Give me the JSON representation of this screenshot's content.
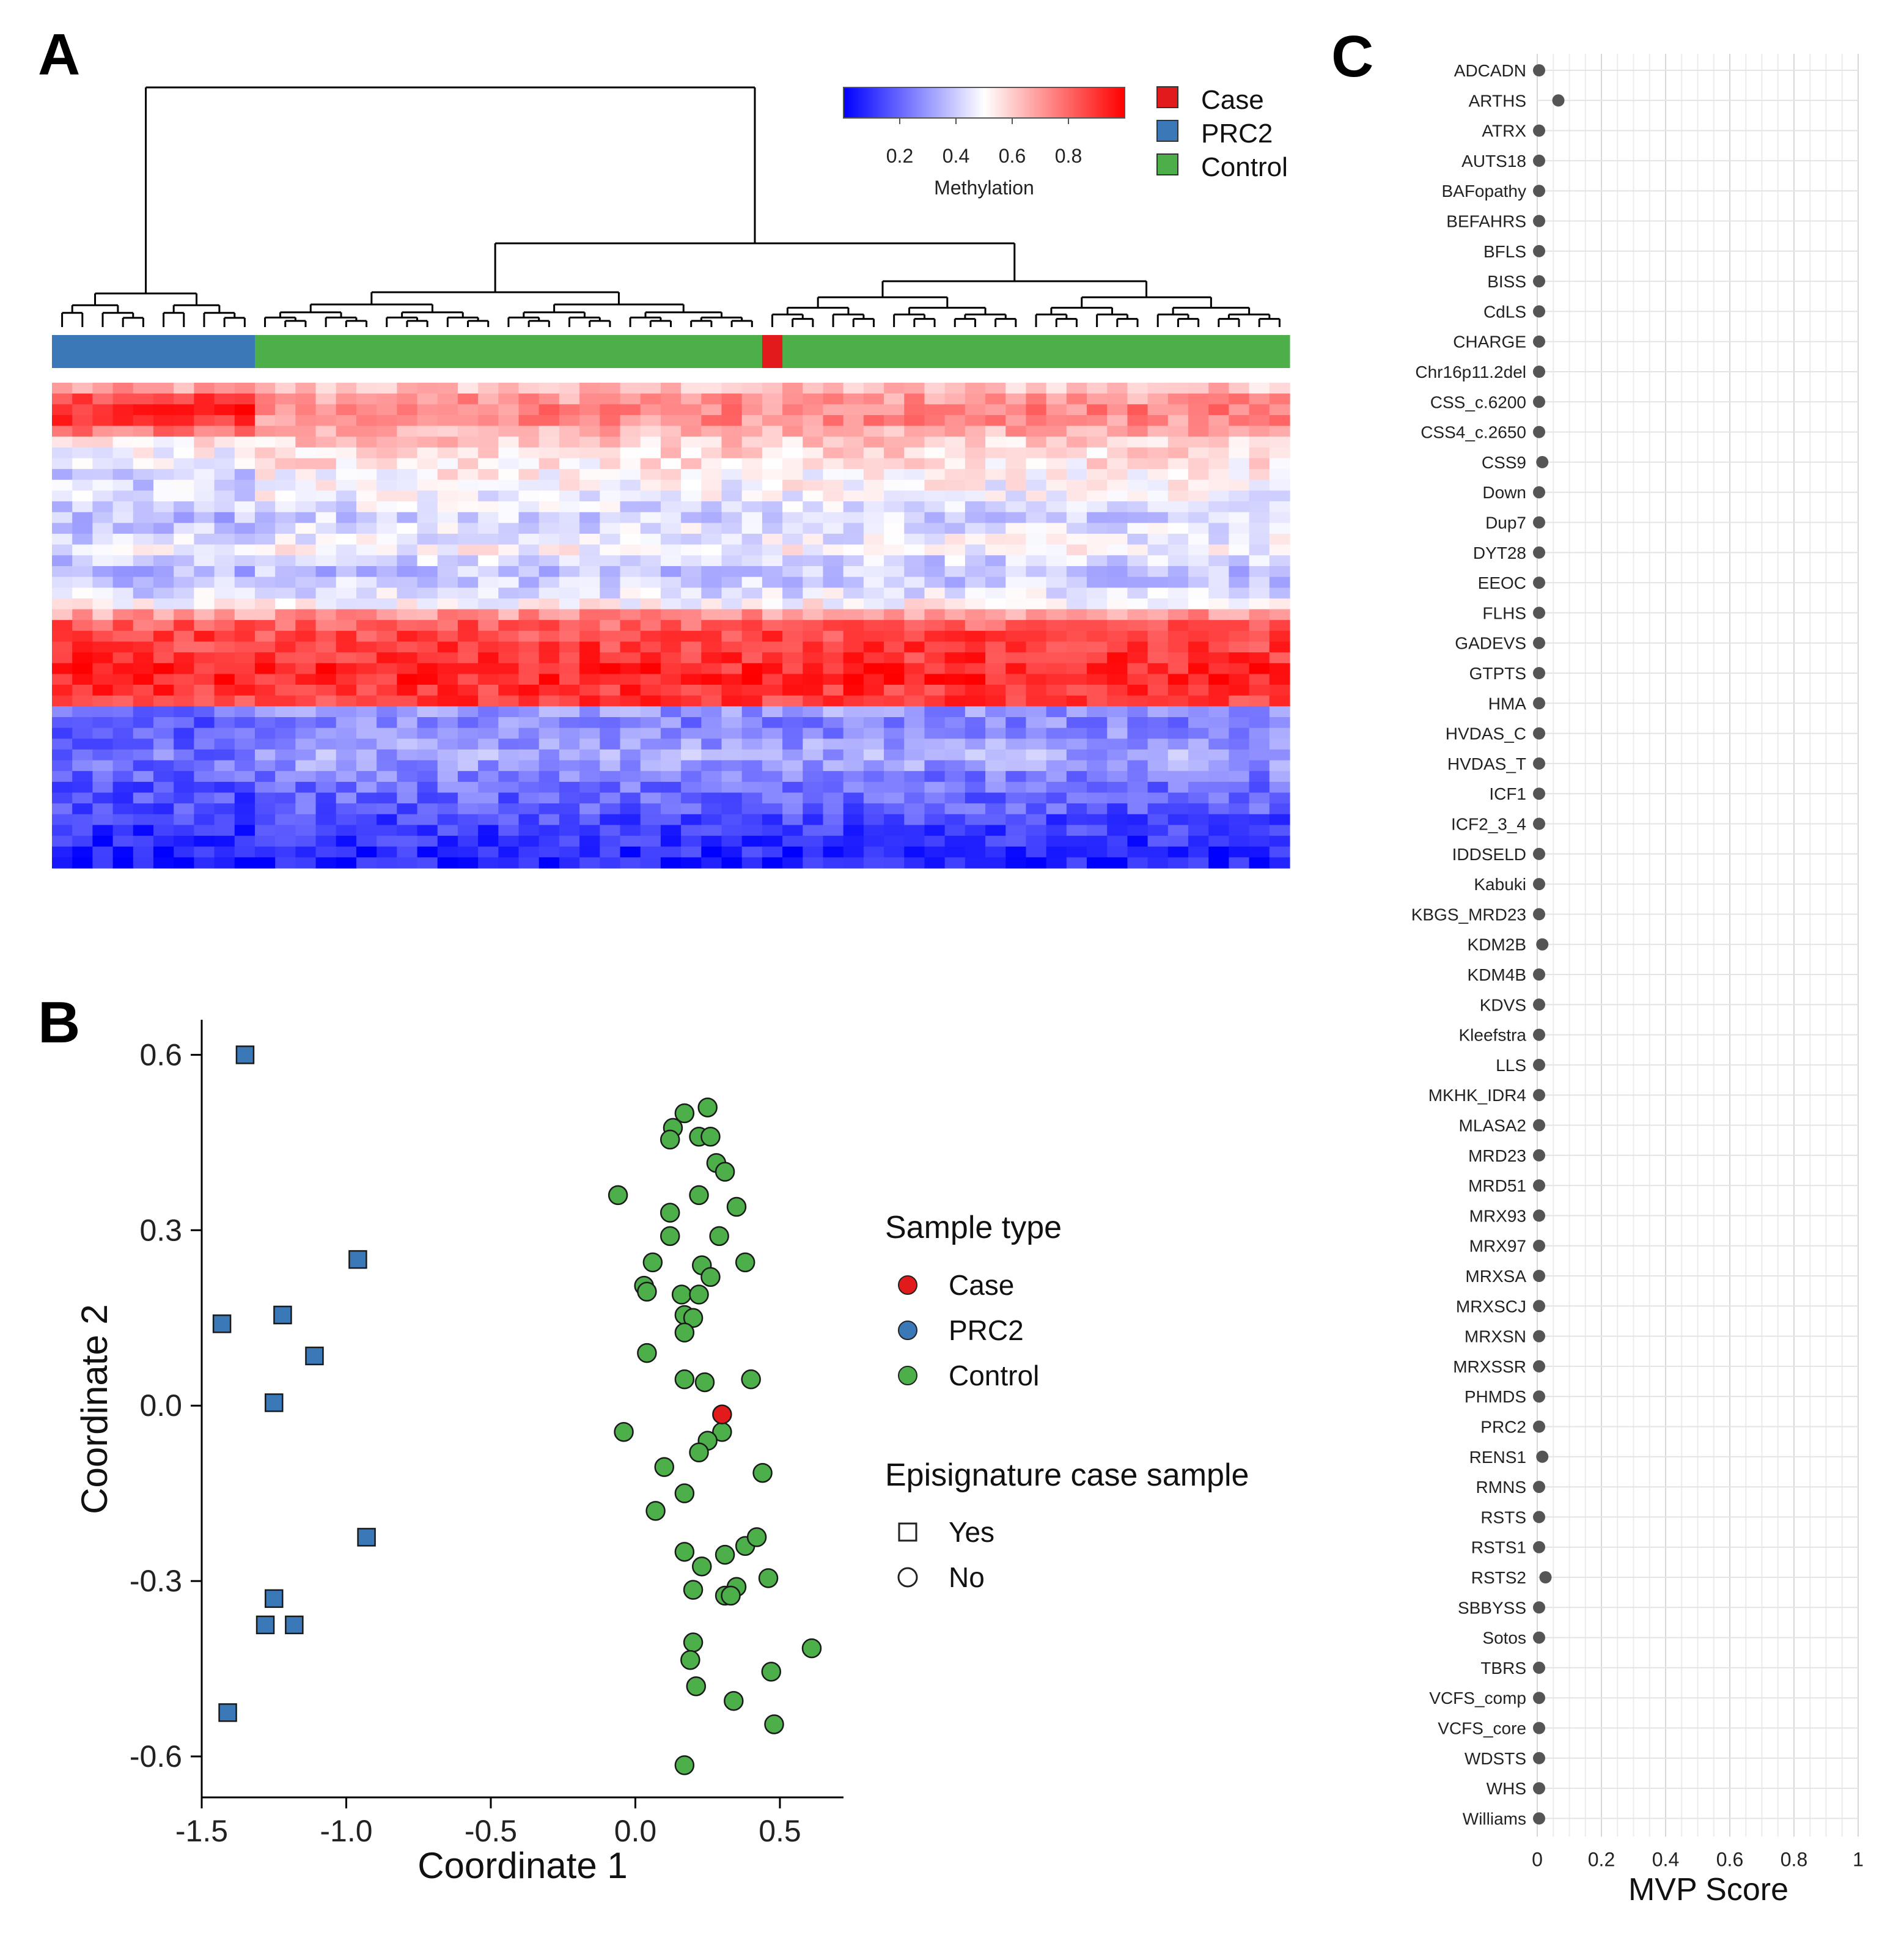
{
  "panels": {
    "a": "A",
    "b": "B",
    "c": "C"
  },
  "colors": {
    "case": "#e31a1c",
    "prc2": "#3a78b8",
    "control": "#4daf4a",
    "heat_low": "#0000ff",
    "heat_mid": "#ffffff",
    "heat_high": "#ff0000",
    "mvp_dot": "#555555"
  },
  "chart_data": [
    {
      "type": "heatmap",
      "panel": "A",
      "title": "",
      "colorbar": {
        "label": "Methylation",
        "ticks": [
          "0.2",
          "0.4",
          "0.6",
          "0.8"
        ],
        "range": [
          0,
          1
        ]
      },
      "legend": [
        {
          "label": "Case",
          "color": "#e31a1c"
        },
        {
          "label": "PRC2",
          "color": "#3a78b8"
        },
        {
          "label": "Control",
          "color": "#4daf4a"
        }
      ],
      "sample_groups": [
        {
          "group": "PRC2",
          "count": 10
        },
        {
          "group": "Control",
          "count": 25
        },
        {
          "group": "Case",
          "count": 1
        },
        {
          "group": "Control",
          "count": 25
        }
      ],
      "row_profile": [
        0.62,
        0.7,
        0.74,
        0.72,
        0.66,
        0.6,
        0.58,
        0.55,
        0.52,
        0.5,
        0.48,
        0.45,
        0.42,
        0.44,
        0.47,
        0.5,
        0.42,
        0.38,
        0.4,
        0.45,
        0.52,
        0.7,
        0.82,
        0.86,
        0.88,
        0.9,
        0.92,
        0.93,
        0.9,
        0.88,
        0.3,
        0.26,
        0.28,
        0.3,
        0.33,
        0.3,
        0.25,
        0.22,
        0.2,
        0.18,
        0.14,
        0.12,
        0.1,
        0.08,
        0.06
      ],
      "prc2_row_shift": [
        0.05,
        0.18,
        0.2,
        0.18,
        0.1,
        -0.05,
        -0.08,
        -0.1,
        -0.1,
        -0.08,
        -0.06,
        -0.05,
        -0.05,
        -0.05,
        -0.04,
        -0.03,
        -0.02,
        -0.02,
        -0.02,
        -0.02,
        -0.02,
        -0.02,
        0,
        0,
        0,
        0,
        0,
        0,
        0,
        0,
        -0.08,
        -0.08,
        -0.1,
        -0.1,
        -0.1,
        -0.08,
        -0.05,
        -0.05,
        -0.05,
        -0.04,
        -0.03,
        -0.03,
        -0.02,
        -0.02,
        -0.02
      ]
    },
    {
      "type": "scatter",
      "panel": "B",
      "xlabel": "Coordinate 1",
      "ylabel": "Coordinate 2",
      "xlim": [
        -1.5,
        0.72
      ],
      "ylim": [
        -0.67,
        0.66
      ],
      "xticks": [
        -1.5,
        -1.0,
        -0.5,
        0.0,
        0.5
      ],
      "xtick_labels": [
        "-1.5",
        "-1.0",
        "-0.5",
        "0.0",
        "0.5"
      ],
      "yticks": [
        0.6,
        0.3,
        0.0,
        -0.3,
        -0.6
      ],
      "ytick_labels": [
        "0.6",
        "0.3",
        "0.0",
        "-0.3",
        "-0.6"
      ],
      "legend_sample_type": {
        "title": "Sample type",
        "items": [
          {
            "label": "Case",
            "color": "#e31a1c"
          },
          {
            "label": "PRC2",
            "color": "#3a78b8"
          },
          {
            "label": "Control",
            "color": "#4daf4a"
          }
        ]
      },
      "legend_episignature": {
        "title": "Episignature case sample",
        "items": [
          {
            "label": "Yes",
            "shape": "square"
          },
          {
            "label": "No",
            "shape": "circle"
          }
        ]
      },
      "series": [
        {
          "name": "PRC2",
          "shape": "square",
          "points": [
            [
              -1.35,
              0.6
            ],
            [
              -0.96,
              0.25
            ],
            [
              -1.43,
              0.14
            ],
            [
              -1.22,
              0.155
            ],
            [
              -1.11,
              0.085
            ],
            [
              -1.25,
              0.005
            ],
            [
              -0.93,
              -0.225
            ],
            [
              -1.25,
              -0.33
            ],
            [
              -1.28,
              -0.375
            ],
            [
              -1.18,
              -0.375
            ],
            [
              -1.41,
              -0.525
            ]
          ]
        },
        {
          "name": "Case",
          "shape": "circle",
          "points": [
            [
              0.3,
              -0.015
            ]
          ]
        },
        {
          "name": "Control",
          "shape": "circle",
          "points": [
            [
              0.25,
              0.51
            ],
            [
              0.17,
              0.5
            ],
            [
              0.13,
              0.475
            ],
            [
              0.12,
              0.455
            ],
            [
              0.22,
              0.46
            ],
            [
              0.26,
              0.46
            ],
            [
              0.28,
              0.415
            ],
            [
              0.31,
              0.4
            ],
            [
              -0.06,
              0.36
            ],
            [
              0.22,
              0.36
            ],
            [
              0.35,
              0.34
            ],
            [
              0.12,
              0.33
            ],
            [
              0.12,
              0.29
            ],
            [
              0.29,
              0.29
            ],
            [
              0.06,
              0.245
            ],
            [
              0.23,
              0.24
            ],
            [
              0.38,
              0.245
            ],
            [
              0.26,
              0.22
            ],
            [
              0.03,
              0.205
            ],
            [
              0.04,
              0.195
            ],
            [
              0.16,
              0.19
            ],
            [
              0.22,
              0.19
            ],
            [
              0.17,
              0.155
            ],
            [
              0.2,
              0.15
            ],
            [
              0.17,
              0.125
            ],
            [
              0.04,
              0.09
            ],
            [
              0.17,
              0.045
            ],
            [
              0.24,
              0.04
            ],
            [
              0.4,
              0.045
            ],
            [
              0.3,
              -0.045
            ],
            [
              -0.04,
              -0.045
            ],
            [
              0.25,
              -0.06
            ],
            [
              0.22,
              -0.08
            ],
            [
              0.1,
              -0.105
            ],
            [
              0.44,
              -0.115
            ],
            [
              0.17,
              -0.15
            ],
            [
              0.07,
              -0.18
            ],
            [
              0.17,
              -0.25
            ],
            [
              0.31,
              -0.255
            ],
            [
              0.38,
              -0.24
            ],
            [
              0.42,
              -0.225
            ],
            [
              0.23,
              -0.275
            ],
            [
              0.46,
              -0.295
            ],
            [
              0.35,
              -0.31
            ],
            [
              0.2,
              -0.315
            ],
            [
              0.31,
              -0.325
            ],
            [
              0.33,
              -0.325
            ],
            [
              0.2,
              -0.405
            ],
            [
              0.19,
              -0.435
            ],
            [
              0.61,
              -0.415
            ],
            [
              0.47,
              -0.455
            ],
            [
              0.21,
              -0.48
            ],
            [
              0.34,
              -0.505
            ],
            [
              0.48,
              -0.545
            ],
            [
              0.17,
              -0.615
            ]
          ]
        }
      ]
    },
    {
      "type": "scatter",
      "panel": "C",
      "xlabel": "MVP Score",
      "xlim": [
        0,
        1
      ],
      "xticks": [
        0,
        0.2,
        0.4,
        0.6,
        0.8,
        1
      ],
      "xtick_labels": [
        "0",
        "0.2",
        "0.4",
        "0.6",
        "0.8",
        "1"
      ],
      "categories": [
        "ADCADN",
        "ARTHS",
        "ATRX",
        "AUTS18",
        "BAFopathy",
        "BEFAHRS",
        "BFLS",
        "BISS",
        "CdLS",
        "CHARGE",
        "Chr16p11.2del",
        "CSS_c.6200",
        "CSS4_c.2650",
        "CSS9",
        "Down",
        "Dup7",
        "DYT28",
        "EEOC",
        "FLHS",
        "GADEVS",
        "GTPTS",
        "HMA",
        "HVDAS_C",
        "HVDAS_T",
        "ICF1",
        "ICF2_3_4",
        "IDDSELD",
        "Kabuki",
        "KBGS_MRD23",
        "KDM2B",
        "KDM4B",
        "KDVS",
        "Kleefstra",
        "LLS",
        "MKHK_IDR4",
        "MLASA2",
        "MRD23",
        "MRD51",
        "MRX93",
        "MRX97",
        "MRXSA",
        "MRXSCJ",
        "MRXSN",
        "MRXSSR",
        "PHMDS",
        "PRC2",
        "RENS1",
        "RMNS",
        "RSTS",
        "RSTS1",
        "RSTS2",
        "SBBYSS",
        "Sotos",
        "TBRS",
        "VCFS_comp",
        "VCFS_core",
        "WDSTS",
        "WHS",
        "Williams"
      ],
      "values": [
        0,
        0.06,
        0,
        0,
        0,
        0,
        0,
        0,
        0,
        0,
        0,
        0,
        0,
        0.01,
        0,
        0,
        0,
        0,
        0,
        0,
        0,
        0,
        0,
        0,
        0,
        0,
        0,
        0,
        0,
        0.01,
        0,
        0,
        0,
        0,
        0,
        0,
        0,
        0,
        0,
        0,
        0,
        0,
        0,
        0,
        0,
        0,
        0.01,
        0,
        0,
        0,
        0.02,
        0,
        0,
        0,
        0,
        0,
        0,
        0,
        0
      ]
    }
  ]
}
